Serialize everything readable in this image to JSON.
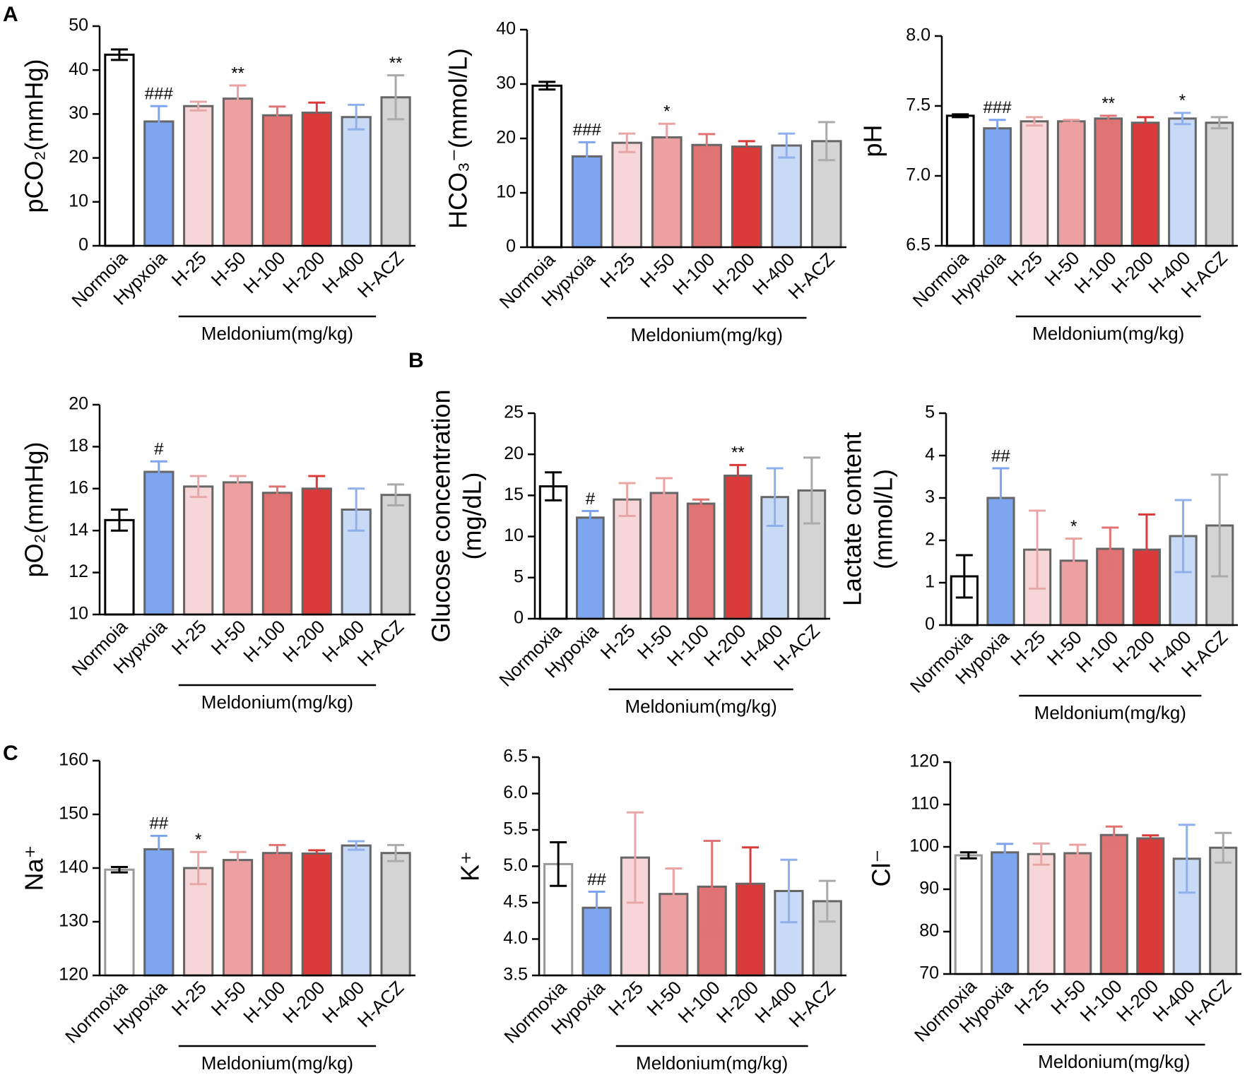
{
  "panel_labels": [
    "A",
    "B",
    "C"
  ],
  "chart_data": [
    {
      "type": "bar",
      "ylabel": "pCO₂(mmHg)",
      "group_label": "Meldonium(mg/kg)",
      "categories": [
        "Normoia",
        "Hypxoia",
        "H-25",
        "H-50",
        "H-100",
        "H-200",
        "H-400",
        "H-ACZ"
      ],
      "values": [
        43.5,
        28.3,
        31.8,
        33.5,
        29.7,
        30.3,
        29.3,
        33.8
      ],
      "errors": [
        1.2,
        3.5,
        1,
        3,
        2,
        2.3,
        2.8,
        5
      ],
      "annotations": [
        null,
        "###",
        null,
        "**",
        null,
        null,
        null,
        "**"
      ],
      "colors": [
        "#ffffff",
        "#7ea6f0",
        "#f6d6d6",
        "#eba1a1",
        "#e07373",
        "#d93a3a",
        "#c9daf6",
        "#d4d4d4"
      ],
      "ylim": [
        0,
        50
      ],
      "yticks": [
        0,
        10,
        20,
        30,
        40,
        50
      ]
    },
    {
      "type": "bar",
      "ylabel": "HCO₃⁻(mmol/L)",
      "group_label": "Meldonium(mg/kg)",
      "categories": [
        "Normoia",
        "Hypxoia",
        "H-25",
        "H-50",
        "H-100",
        "H-200",
        "H-400",
        "H-ACZ"
      ],
      "values": [
        29.7,
        16.7,
        19.2,
        20.2,
        18.8,
        18.5,
        18.7,
        19.5
      ],
      "errors": [
        0.7,
        2.6,
        1.7,
        2.5,
        2,
        1,
        2.2,
        3.5
      ],
      "annotations": [
        null,
        "###",
        null,
        "*",
        null,
        null,
        null,
        null
      ],
      "colors": [
        "#ffffff",
        "#7ea6f0",
        "#f6d6d6",
        "#eba1a1",
        "#e07373",
        "#d93a3a",
        "#c9daf6",
        "#d4d4d4"
      ],
      "ylim": [
        0,
        40
      ],
      "yticks": [
        0,
        10,
        20,
        30,
        40
      ]
    },
    {
      "type": "bar",
      "ylabel": "pH",
      "group_label": "Meldonium(mg/kg)",
      "categories": [
        "Normoia",
        "Hypxoia",
        "H-25",
        "H-50",
        "H-100",
        "H-200",
        "H-400",
        "H-ACZ"
      ],
      "values": [
        7.43,
        7.34,
        7.39,
        7.39,
        7.41,
        7.38,
        7.41,
        7.38
      ],
      "errors": [
        0.01,
        0.06,
        0.03,
        0.01,
        0.02,
        0.04,
        0.04,
        0.04
      ],
      "annotations": [
        null,
        "###",
        null,
        null,
        "**",
        null,
        "*",
        null
      ],
      "colors": [
        "#ffffff",
        "#7ea6f0",
        "#f6d6d6",
        "#eba1a1",
        "#e07373",
        "#d93a3a",
        "#c9daf6",
        "#d4d4d4"
      ],
      "ylim": [
        6.5,
        8.0
      ],
      "yticks": [
        6.5,
        {
          "value": 7,
          "label": "7.0"
        },
        7.5,
        {
          "value": 8,
          "label": "8.0"
        }
      ]
    },
    {
      "type": "bar",
      "ylabel": "pO₂(mmHg)",
      "group_label": "Meldonium(mg/kg)",
      "categories": [
        "Normoia",
        "Hypxoia",
        "H-25",
        "H-50",
        "H-100",
        "H-200",
        "H-400",
        "H-ACZ"
      ],
      "values": [
        14.5,
        16.8,
        16.1,
        16.3,
        15.8,
        16.0,
        15.0,
        15.7
      ],
      "errors": [
        0.5,
        0.5,
        0.5,
        0.3,
        0.3,
        0.6,
        1,
        0.5
      ],
      "annotations": [
        null,
        "#",
        null,
        null,
        null,
        null,
        null,
        null
      ],
      "colors": [
        "#ffffff",
        "#7ea6f0",
        "#f6d6d6",
        "#eba1a1",
        "#e07373",
        "#d93a3a",
        "#c9daf6",
        "#d4d4d4"
      ],
      "ylim": [
        10,
        20
      ],
      "yticks": [
        10,
        12,
        14,
        16,
        18,
        20
      ]
    },
    {
      "type": "bar",
      "ylabel": [
        "Glucose concentration",
        "(mg/dL)"
      ],
      "group_label": "Meldonium(mg/kg)",
      "categories": [
        "Normoxia",
        "Hypoxia",
        "H-25",
        "H-50",
        "H-100",
        "H-200",
        "H-400",
        "H-ACZ"
      ],
      "values": [
        16.1,
        12.3,
        14.5,
        15.3,
        14.0,
        17.4,
        14.8,
        15.6
      ],
      "errors": [
        1.7,
        0.8,
        2,
        1.8,
        0.5,
        1.3,
        3.5,
        4
      ],
      "annotations": [
        null,
        "#",
        null,
        null,
        null,
        "**",
        null,
        null
      ],
      "colors": [
        "#ffffff",
        "#7ea6f0",
        "#f6d6d6",
        "#eba1a1",
        "#e07373",
        "#d93a3a",
        "#c9daf6",
        "#d4d4d4"
      ],
      "ylim": [
        0,
        25
      ],
      "yticks": [
        0,
        5,
        10,
        15,
        20,
        25
      ]
    },
    {
      "type": "bar",
      "ylabel": [
        "Lactate content",
        "(mmol/L)"
      ],
      "group_label": "Meldonium(mg/kg)",
      "categories": [
        "Normoxia",
        "Hypoxia",
        "H-25",
        "H-50",
        "H-100",
        "H-200",
        "H-400",
        "H-ACZ"
      ],
      "values": [
        1.15,
        3.0,
        1.78,
        1.52,
        1.8,
        1.78,
        2.1,
        2.35
      ],
      "errors": [
        0.5,
        0.7,
        0.92,
        0.52,
        0.5,
        0.83,
        0.85,
        1.2
      ],
      "annotations": [
        null,
        "##",
        null,
        "*",
        null,
        null,
        null,
        null
      ],
      "colors": [
        "#ffffff",
        "#7ea6f0",
        "#f6d6d6",
        "#eba1a1",
        "#e07373",
        "#d93a3a",
        "#c9daf6",
        "#d4d4d4"
      ],
      "ylim": [
        0,
        5
      ],
      "yticks": [
        0,
        1,
        2,
        3,
        4,
        5
      ]
    },
    {
      "type": "bar",
      "ylabel": "Na⁺",
      "group_label": "Meldonium(mg/kg)",
      "categories": [
        "Normoxia",
        "Hypoxia",
        "H-25",
        "H-50",
        "H-100",
        "H-200",
        "H-400",
        "H-ACZ"
      ],
      "values": [
        139.7,
        143.5,
        140,
        141.5,
        142.8,
        142.7,
        144.2,
        142.8
      ],
      "errors": [
        0.5,
        2.5,
        3,
        1.5,
        1.5,
        0.6,
        0.8,
        1.5
      ],
      "annotations": [
        null,
        "##",
        "*",
        null,
        null,
        null,
        null,
        null
      ],
      "colors": [
        "#ffffff",
        "#7ea6f0",
        "#f6d6d6",
        "#eba1a1",
        "#e07373",
        "#d93a3a",
        "#c9daf6",
        "#d4d4d4"
      ],
      "ylim": [
        120,
        160
      ],
      "yticks": [
        120,
        130,
        140,
        150,
        160
      ]
    },
    {
      "type": "bar",
      "ylabel": "K⁺",
      "group_label": "Meldonium(mg/kg)",
      "categories": [
        "Normoxia",
        "Hypoxia",
        "H-25",
        "H-50",
        "H-100",
        "H-200",
        "H-400",
        "H-ACZ"
      ],
      "values": [
        5.03,
        4.43,
        5.12,
        4.62,
        4.72,
        4.76,
        4.66,
        4.52
      ],
      "errors": [
        0.3,
        0.22,
        0.62,
        0.35,
        0.63,
        0.5,
        0.43,
        0.28
      ],
      "annotations": [
        null,
        "##",
        null,
        null,
        null,
        null,
        null,
        null
      ],
      "colors": [
        "#ffffff",
        "#7ea6f0",
        "#f6d6d6",
        "#eba1a1",
        "#e07373",
        "#d93a3a",
        "#c9daf6",
        "#d4d4d4"
      ],
      "ylim": [
        3.5,
        6.5
      ],
      "yticks": [
        3.5,
        {
          "value": 4,
          "label": "4.0"
        },
        4.5,
        {
          "value": 5,
          "label": "5.0"
        },
        5.5,
        {
          "value": 6,
          "label": "6.0"
        },
        6.5
      ]
    },
    {
      "type": "bar",
      "ylabel": "Cl⁻",
      "group_label": "Meldonium(mg/kg)",
      "categories": [
        "Normoxia",
        "Hypoxia",
        "H-25",
        "H-50",
        "H-100",
        "H-200",
        "H-400",
        "H-ACZ"
      ],
      "values": [
        98,
        98.7,
        98.3,
        98.5,
        102.8,
        102,
        97.2,
        99.8
      ],
      "errors": [
        0.7,
        2,
        2.5,
        2,
        2,
        0.7,
        8,
        3.5
      ],
      "annotations": [
        null,
        null,
        null,
        null,
        null,
        null,
        null,
        null
      ],
      "colors": [
        "#ffffff",
        "#7ea6f0",
        "#f6d6d6",
        "#eba1a1",
        "#e07373",
        "#d93a3a",
        "#c9daf6",
        "#d4d4d4"
      ],
      "ylim": [
        70,
        120
      ],
      "yticks": [
        70,
        80,
        90,
        100,
        110,
        120
      ]
    }
  ]
}
